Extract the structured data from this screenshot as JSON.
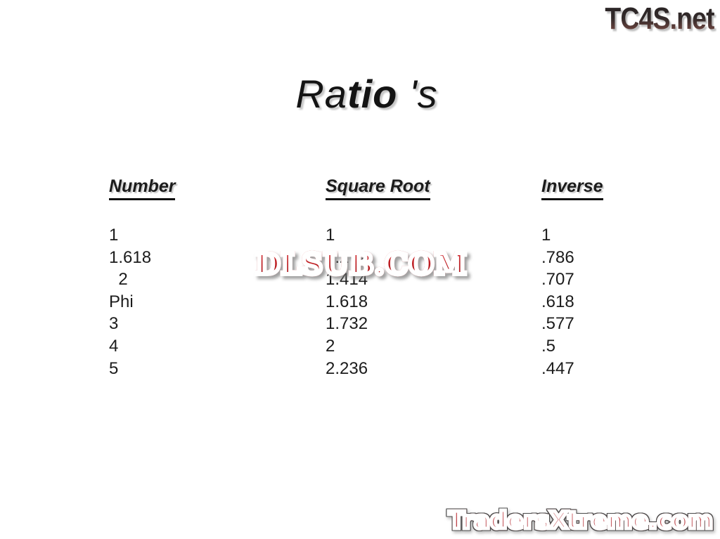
{
  "slide": {
    "title": {
      "full": "Ratio 's",
      "part1": "Ra",
      "part2": "tio",
      "part3": " 's"
    },
    "table": {
      "columns": [
        "Number",
        "Square Root",
        "Inverse"
      ],
      "rows": [
        [
          "1",
          "1",
          "1"
        ],
        [
          "1.618",
          "1.272",
          ".786"
        ],
        [
          "  2",
          "1.414",
          ".707"
        ],
        [
          "Phi",
          "1.618",
          ".618"
        ],
        [
          "3",
          "1.732",
          ".577"
        ],
        [
          "4",
          "2",
          ".5"
        ],
        [
          "5",
          "2.236",
          ".447"
        ]
      ]
    }
  },
  "watermarks": {
    "top_right": "TC4S.net",
    "center": "DLSUB.COM",
    "bottom_right": "TradersXtreme.com"
  },
  "colors": {
    "background": "#ffffff",
    "text": "#1c1c1c",
    "watermark_red": "#c01e23",
    "tc4s_gradient_top": "#272223",
    "tc4s_gradient_bottom": "#8a5149",
    "traders_red_light": "#d4696e",
    "traders_red_dark": "#a93a40"
  }
}
